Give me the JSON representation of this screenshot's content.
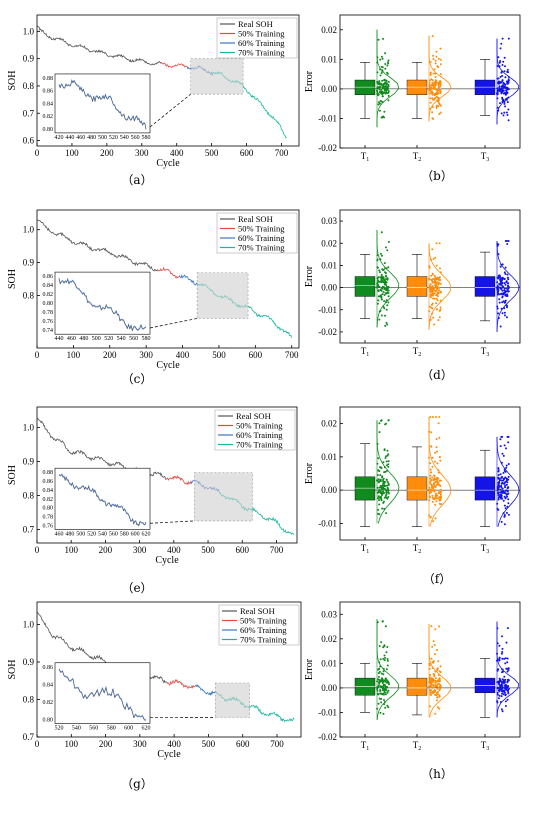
{
  "series_colors": {
    "real": "#555555",
    "t50": "#e8473f",
    "t60": "#3c74c9",
    "t70": "#19b7a0"
  },
  "box_colors": [
    "#118a1e",
    "#ff8c0a",
    "#1414e6"
  ],
  "chart_data": [
    {
      "id": "a",
      "type": "line",
      "caption": "（a）",
      "xlabel": "Cycle",
      "ylabel": "SOH",
      "xlim": [
        0,
        750
      ],
      "ylim": [
        0.58,
        1.06
      ],
      "xticks": [
        "0",
        "100",
        "200",
        "300",
        "400",
        "500",
        "600",
        "700"
      ],
      "yticks": [
        "0.6",
        "0.7",
        "0.8",
        "0.9",
        "1.0"
      ],
      "legend": [
        "Real SOH",
        "50% Training",
        "60% Training",
        "70% Training"
      ],
      "points": [
        [
          0,
          1.02
        ],
        [
          10,
          1.0
        ],
        [
          30,
          0.985
        ],
        [
          60,
          0.97
        ],
        [
          90,
          0.955
        ],
        [
          120,
          0.945
        ],
        [
          160,
          0.93
        ],
        [
          200,
          0.915
        ],
        [
          240,
          0.905
        ],
        [
          280,
          0.895
        ],
        [
          320,
          0.885
        ],
        [
          360,
          0.88
        ],
        [
          400,
          0.875
        ],
        [
          440,
          0.87
        ],
        [
          470,
          0.862
        ],
        [
          500,
          0.85
        ],
        [
          530,
          0.84
        ],
        [
          560,
          0.82
        ],
        [
          590,
          0.8
        ],
        [
          620,
          0.76
        ],
        [
          650,
          0.72
        ],
        [
          680,
          0.68
        ],
        [
          700,
          0.64
        ],
        [
          715,
          0.61
        ]
      ],
      "split": [
        355,
        430,
        500
      ],
      "inset": {
        "xticks": [
          "420",
          "440",
          "460",
          "480",
          "500",
          "520",
          "540",
          "560",
          "580"
        ],
        "yticks": [
          "0.80",
          "0.82",
          "0.84",
          "0.86",
          "0.88"
        ],
        "range": [
          440,
          590
        ]
      }
    },
    {
      "id": "c",
      "type": "line",
      "caption": "（c）",
      "xlabel": "Cycle",
      "ylabel": "SOH",
      "xlim": [
        0,
        720
      ],
      "ylim": [
        0.64,
        1.06
      ],
      "xticks": [
        "0",
        "100",
        "200",
        "300",
        "400",
        "500",
        "600",
        "700"
      ],
      "yticks": [
        "0.8",
        "0.9",
        "1.0"
      ],
      "legend": [
        "Real SOH",
        "50% Training",
        "60% Training",
        "70% Training"
      ],
      "points": [
        [
          0,
          1.03
        ],
        [
          20,
          1.01
        ],
        [
          50,
          0.99
        ],
        [
          100,
          0.965
        ],
        [
          150,
          0.945
        ],
        [
          200,
          0.93
        ],
        [
          250,
          0.91
        ],
        [
          300,
          0.89
        ],
        [
          350,
          0.875
        ],
        [
          400,
          0.855
        ],
        [
          450,
          0.835
        ],
        [
          500,
          0.8
        ],
        [
          550,
          0.775
        ],
        [
          600,
          0.75
        ],
        [
          650,
          0.72
        ],
        [
          700,
          0.67
        ]
      ],
      "split": [
        330,
        390,
        440
      ],
      "inset": {
        "xticks": [
          "440",
          "460",
          "480",
          "500",
          "520",
          "540",
          "560",
          "580"
        ],
        "yticks": [
          "0.74",
          "0.76",
          "0.78",
          "0.80",
          "0.82",
          "0.84",
          "0.86"
        ],
        "range": [
          440,
          580
        ]
      }
    },
    {
      "id": "e",
      "type": "line",
      "caption": "（e）",
      "xlabel": "Cycle",
      "ylabel": "SOH",
      "xlim": [
        0,
        760
      ],
      "ylim": [
        0.66,
        1.06
      ],
      "xticks": [
        "0",
        "100",
        "200",
        "300",
        "400",
        "500",
        "600",
        "700"
      ],
      "yticks": [
        "0.7",
        "0.8",
        "0.9",
        "1.0"
      ],
      "legend": [
        "Real SOH",
        "50% Training",
        "60% Training",
        "70% Training"
      ],
      "points": [
        [
          0,
          1.03
        ],
        [
          20,
          1.0
        ],
        [
          50,
          0.97
        ],
        [
          100,
          0.93
        ],
        [
          150,
          0.915
        ],
        [
          200,
          0.9
        ],
        [
          250,
          0.885
        ],
        [
          300,
          0.87
        ],
        [
          350,
          0.86
        ],
        [
          400,
          0.85
        ],
        [
          450,
          0.84
        ],
        [
          500,
          0.825
        ],
        [
          550,
          0.8
        ],
        [
          600,
          0.77
        ],
        [
          650,
          0.745
        ],
        [
          700,
          0.72
        ],
        [
          750,
          0.68
        ]
      ],
      "split": [
        380,
        450,
        530
      ],
      "inset": {
        "xticks": [
          "460",
          "480",
          "500",
          "520",
          "540",
          "560",
          "580",
          "600",
          "620"
        ],
        "yticks": [
          "0.76",
          "0.78",
          "0.80",
          "0.82",
          "0.84",
          "0.86",
          "0.88"
        ],
        "range": [
          460,
          630
        ]
      }
    },
    {
      "id": "g",
      "type": "line",
      "caption": "（g）",
      "xlabel": "Cycle",
      "ylabel": "SOH",
      "xlim": [
        0,
        770
      ],
      "ylim": [
        0.7,
        1.06
      ],
      "xticks": [
        "0",
        "100",
        "200",
        "300",
        "400",
        "500",
        "600",
        "700"
      ],
      "yticks": [
        "0.7",
        "0.8",
        "0.9",
        "1.0"
      ],
      "legend": [
        "Real SOH",
        "50% Training",
        "60% Training",
        "70% Training"
      ],
      "points": [
        [
          0,
          1.03
        ],
        [
          20,
          1.0
        ],
        [
          50,
          0.97
        ],
        [
          100,
          0.94
        ],
        [
          150,
          0.92
        ],
        [
          200,
          0.9
        ],
        [
          250,
          0.885
        ],
        [
          300,
          0.87
        ],
        [
          350,
          0.855
        ],
        [
          400,
          0.845
        ],
        [
          450,
          0.835
        ],
        [
          500,
          0.82
        ],
        [
          550,
          0.805
        ],
        [
          600,
          0.79
        ],
        [
          650,
          0.77
        ],
        [
          700,
          0.755
        ],
        [
          750,
          0.74
        ]
      ],
      "split": [
        380,
        460,
        520
      ],
      "inset": {
        "xticks": [
          "520",
          "540",
          "560",
          "580",
          "600",
          "620"
        ],
        "yticks": [
          "0.80",
          "0.82",
          "0.84",
          "0.86"
        ],
        "range": [
          520,
          620
        ]
      }
    },
    {
      "id": "b",
      "type": "box",
      "caption": "（b）",
      "ylabel": "Error",
      "categories": [
        "T",
        "T",
        "T"
      ],
      "subscripts": [
        "1",
        "2",
        "3"
      ],
      "yticks": [
        "0.02",
        "0.01",
        "0.00",
        "-0.01",
        "-0.02"
      ],
      "ylim": [
        -0.02,
        0.025
      ],
      "stats": [
        {
          "q1": -0.002,
          "q3": 0.003,
          "min": -0.01,
          "max": 0.009,
          "med": 0.0006
        },
        {
          "q1": -0.002,
          "q3": 0.003,
          "min": -0.01,
          "max": 0.009,
          "med": 0.0006
        },
        {
          "q1": -0.002,
          "q3": 0.003,
          "min": -0.009,
          "max": 0.01,
          "med": 0.0006
        }
      ],
      "spread": [
        [
          -0.013,
          0.02
        ],
        [
          -0.011,
          0.018
        ],
        [
          -0.012,
          0.017
        ]
      ]
    },
    {
      "id": "d",
      "type": "box",
      "caption": "（d）",
      "ylabel": "Error",
      "categories": [
        "T",
        "T",
        "T"
      ],
      "subscripts": [
        "1",
        "2",
        "3"
      ],
      "yticks": [
        "0.03",
        "0.02",
        "0.01",
        "0.00",
        "-0.01",
        "-0.02"
      ],
      "ylim": [
        -0.025,
        0.035
      ],
      "stats": [
        {
          "q1": -0.004,
          "q3": 0.005,
          "min": -0.014,
          "max": 0.015,
          "med": 0.001
        },
        {
          "q1": -0.004,
          "q3": 0.005,
          "min": -0.014,
          "max": 0.015,
          "med": 0.0
        },
        {
          "q1": -0.004,
          "q3": 0.005,
          "min": -0.015,
          "max": 0.016,
          "med": 0.0
        }
      ],
      "spread": [
        [
          -0.018,
          0.026
        ],
        [
          -0.019,
          0.02
        ],
        [
          -0.02,
          0.021
        ]
      ]
    },
    {
      "id": "f",
      "type": "box",
      "caption": "（f）",
      "ylabel": "Error",
      "categories": [
        "T",
        "T",
        "T"
      ],
      "subscripts": [
        "1",
        "2",
        "3"
      ],
      "yticks": [
        "0.02",
        "0.01",
        "0.00",
        "-0.01"
      ],
      "ylim": [
        -0.015,
        0.025
      ],
      "stats": [
        {
          "q1": -0.003,
          "q3": 0.004,
          "min": -0.011,
          "max": 0.014,
          "med": 0.0006
        },
        {
          "q1": -0.003,
          "q3": 0.004,
          "min": -0.011,
          "max": 0.013,
          "med": 0.0
        },
        {
          "q1": -0.003,
          "q3": 0.004,
          "min": -0.011,
          "max": 0.012,
          "med": 0.0
        }
      ],
      "spread": [
        [
          -0.01,
          0.021
        ],
        [
          -0.011,
          0.022
        ],
        [
          -0.011,
          0.016
        ]
      ]
    },
    {
      "id": "h",
      "type": "box",
      "caption": "（h）",
      "ylabel": "Error",
      "categories": [
        "T",
        "T",
        "T"
      ],
      "subscripts": [
        "1",
        "2",
        "3"
      ],
      "yticks": [
        "0.03",
        "0.02",
        "0.01",
        "0.00",
        "-0.01",
        "-0.02"
      ],
      "ylim": [
        -0.02,
        0.035
      ],
      "stats": [
        {
          "q1": -0.003,
          "q3": 0.004,
          "min": -0.01,
          "max": 0.01,
          "med": 0.0006
        },
        {
          "q1": -0.003,
          "q3": 0.004,
          "min": -0.011,
          "max": 0.01,
          "med": 0.0
        },
        {
          "q1": -0.002,
          "q3": 0.004,
          "min": -0.012,
          "max": 0.012,
          "med": 0.001
        }
      ],
      "spread": [
        [
          -0.013,
          0.028
        ],
        [
          -0.012,
          0.026
        ],
        [
          -0.012,
          0.027
        ]
      ]
    }
  ]
}
